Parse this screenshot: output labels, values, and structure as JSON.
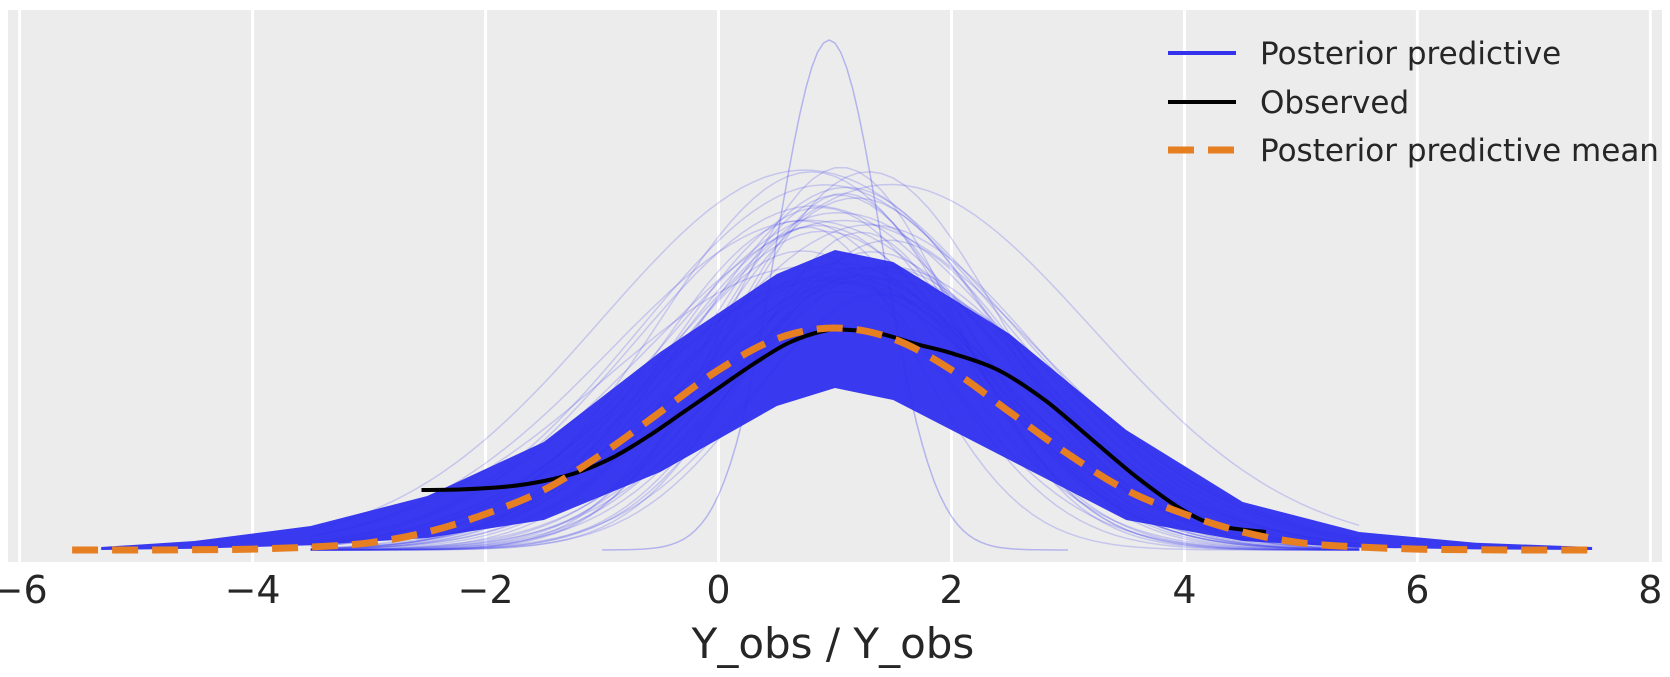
{
  "chart_data": {
    "type": "line",
    "title": "",
    "xlabel": "Y_obs / Y_obs",
    "ylabel": "",
    "xlim": [
      -6.1,
      8.1
    ],
    "x_ticks": [
      -6,
      -4,
      -2,
      0,
      2,
      4,
      6,
      8
    ],
    "x_tick_labels": [
      "−6",
      "−4",
      "−2",
      "0",
      "2",
      "4",
      "6",
      "8"
    ],
    "y_ticks_visible": false,
    "grid": "x",
    "legend": {
      "placement": "top-right",
      "entries": [
        {
          "label": "Posterior predictive",
          "color": "#3333ee",
          "style": "solid"
        },
        {
          "label": "Observed",
          "color": "#000000",
          "style": "solid"
        },
        {
          "label": "Posterior predictive mean",
          "color": "#e67e22",
          "style": "dashed"
        }
      ]
    },
    "series": [
      {
        "name": "Posterior predictive",
        "kind": "envelope",
        "color": "#3333ee",
        "x": [
          -5.3,
          -4.5,
          -3.5,
          -2.5,
          -1.5,
          -0.5,
          0.5,
          1.0,
          1.5,
          2.5,
          3.5,
          4.5,
          5.5,
          6.5,
          7.5
        ],
        "lower": [
          0.0,
          0.002,
          0.008,
          0.02,
          0.05,
          0.13,
          0.24,
          0.27,
          0.25,
          0.15,
          0.05,
          0.015,
          0.004,
          0.001,
          0.0
        ],
        "upper": [
          0.005,
          0.015,
          0.04,
          0.09,
          0.18,
          0.33,
          0.46,
          0.5,
          0.48,
          0.36,
          0.2,
          0.08,
          0.03,
          0.012,
          0.005
        ],
        "peak": {
          "x": 0.95,
          "y": 0.85
        }
      },
      {
        "name": "Observed",
        "color": "#000000",
        "x": [
          -2.55,
          -2.2,
          -1.8,
          -1.5,
          -1.2,
          -0.9,
          -0.6,
          -0.3,
          0.0,
          0.3,
          0.6,
          0.9,
          1.1,
          1.4,
          1.7,
          2.0,
          2.4,
          2.8,
          3.2,
          3.6,
          4.0,
          4.3,
          4.7
        ],
        "y": [
          0.1,
          0.101,
          0.106,
          0.115,
          0.13,
          0.155,
          0.19,
          0.23,
          0.27,
          0.31,
          0.345,
          0.365,
          0.367,
          0.36,
          0.343,
          0.328,
          0.3,
          0.25,
          0.185,
          0.12,
          0.065,
          0.04,
          0.03
        ]
      },
      {
        "name": "Posterior predictive mean",
        "color": "#e67e22",
        "x": [
          -5.55,
          -5.0,
          -4.5,
          -4.0,
          -3.5,
          -3.0,
          -2.5,
          -2.0,
          -1.5,
          -1.0,
          -0.5,
          0.0,
          0.5,
          1.0,
          1.5,
          2.0,
          2.5,
          3.0,
          3.5,
          4.0,
          4.5,
          5.0,
          5.5,
          6.0,
          6.5,
          7.0,
          7.55
        ],
        "y": [
          0.0,
          0.0,
          0.0005,
          0.0015,
          0.005,
          0.012,
          0.03,
          0.06,
          0.1,
          0.16,
          0.23,
          0.3,
          0.352,
          0.37,
          0.352,
          0.3,
          0.23,
          0.16,
          0.1,
          0.06,
          0.03,
          0.012,
          0.005,
          0.0015,
          0.0005,
          0.0,
          0.0
        ]
      }
    ],
    "ylim": [
      -0.02,
      0.9
    ]
  }
}
